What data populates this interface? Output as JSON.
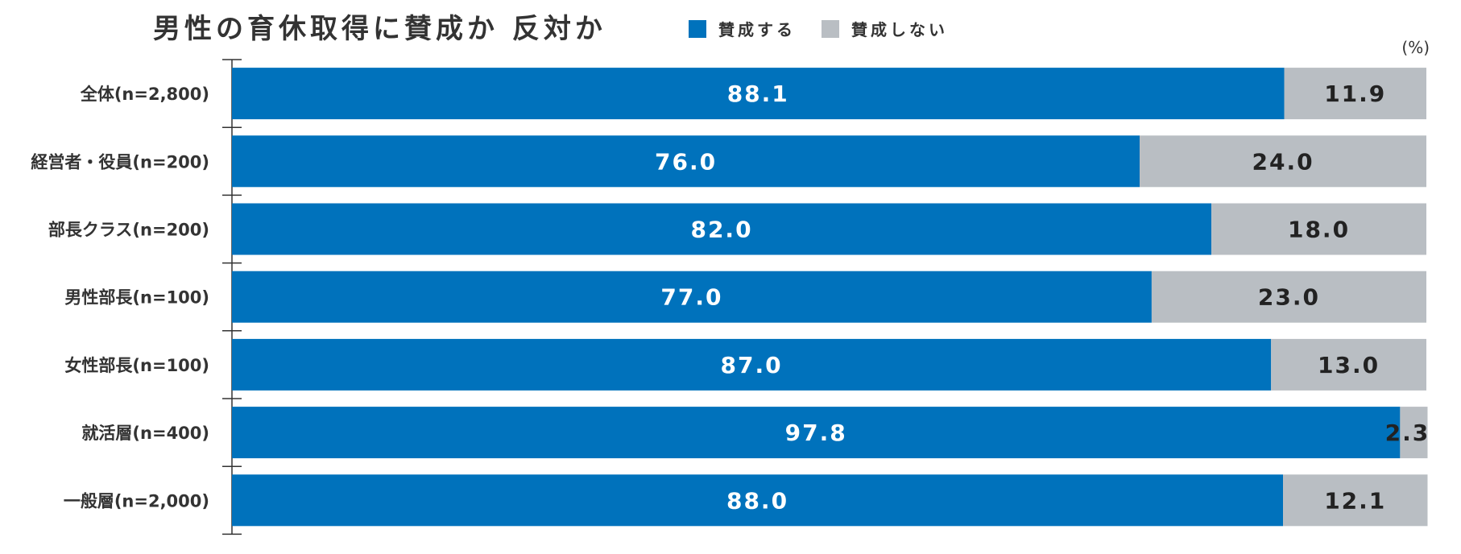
{
  "chart_data": {
    "type": "bar",
    "orientation": "horizontal",
    "stacked": true,
    "title": "男性の育休取得に賛成か 反対か",
    "unit": "(%)",
    "legend_position": "top",
    "categories": [
      "全体(n=2,800)",
      "経営者・役員(n=200)",
      "部長クラス(n=200)",
      "男性部長(n=100)",
      "女性部長(n=100)",
      "就活層(n=400)",
      "一般層(n=2,000)"
    ],
    "series": [
      {
        "name": "賛成する",
        "color": "#0072bc",
        "values": [
          88.1,
          76.0,
          82.0,
          77.0,
          87.0,
          97.8,
          88.0
        ],
        "labels": [
          "88.1",
          "76.0",
          "82.0",
          "77.0",
          "87.0",
          "97.8",
          "88.0"
        ]
      },
      {
        "name": "賛成しない",
        "color": "#b9bec3",
        "values": [
          11.9,
          24.0,
          18.0,
          23.0,
          13.0,
          2.3,
          12.1
        ],
        "labels": [
          "11.9",
          "24.0",
          "18.0",
          "23.0",
          "13.0",
          "2.3",
          "12.1"
        ]
      }
    ],
    "xlim": [
      0,
      100
    ],
    "grid": false
  }
}
